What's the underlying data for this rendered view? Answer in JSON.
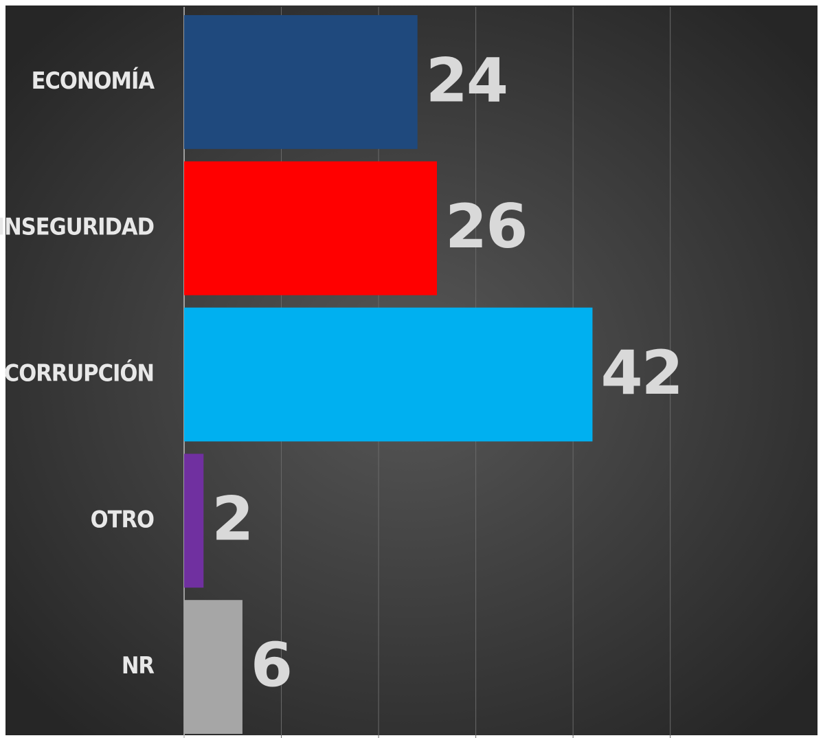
{
  "chart_data": {
    "type": "bar",
    "orientation": "horizontal",
    "categories": [
      "ECONOMÍA",
      "INSEGURIDAD",
      "CORRUPCIÓN",
      "OTRO",
      "NR"
    ],
    "values": [
      24,
      26,
      42,
      2,
      6
    ],
    "colors": [
      "#1f497d",
      "#ff0000",
      "#00b0f0",
      "#7030a0",
      "#a6a6a6"
    ],
    "xlim": [
      0,
      65
    ],
    "xticks": [
      0,
      10,
      20,
      30,
      40,
      50
    ],
    "grid": true
  }
}
